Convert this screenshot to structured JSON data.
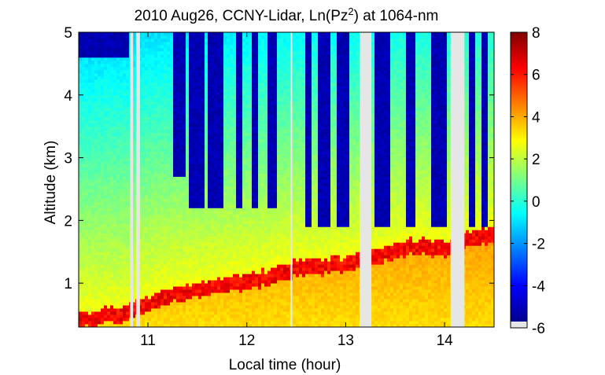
{
  "chart_data": {
    "type": "heatmap",
    "title_main": "2010 Aug26, CCNY-Lidar, Ln(Pz",
    "title_sup": "2",
    "title_end": ") at 1064-nm",
    "xlabel": "Local time (hour)",
    "ylabel": "Altitude (km)",
    "xlim": [
      10.3,
      14.5
    ],
    "ylim": [
      0.3,
      5.0
    ],
    "xticks": [
      11,
      12,
      13,
      14
    ],
    "xtick_labels": [
      "11",
      "12",
      "13",
      "14"
    ],
    "yticks": [
      1,
      2,
      3,
      4,
      5
    ],
    "ytick_labels": [
      "1",
      "2",
      "3",
      "4",
      "5"
    ],
    "colorbar": {
      "range": [
        -6,
        8
      ],
      "ticks": [
        -6,
        -4,
        -2,
        0,
        2,
        4,
        6,
        8
      ],
      "tick_labels": [
        "-6",
        "-4",
        "-2",
        "0",
        "2",
        "4",
        "6",
        "8"
      ],
      "colormap": "jet",
      "missing_color": "#e6e6e6"
    },
    "data_gaps_hours": [
      [
        10.82,
        10.85
      ],
      [
        10.88,
        10.92
      ],
      [
        12.44,
        12.46
      ],
      [
        13.14,
        13.26
      ],
      [
        14.06,
        14.2
      ]
    ],
    "boundary_layer_top_km": {
      "time": [
        10.3,
        10.8,
        11.2,
        11.5,
        11.8,
        12.2,
        12.5,
        13.0,
        13.3,
        13.7,
        14.0,
        14.2,
        14.5
      ],
      "alt": [
        0.45,
        0.6,
        0.85,
        0.95,
        1.05,
        1.15,
        1.3,
        1.35,
        1.5,
        1.65,
        1.6,
        1.75,
        1.85
      ]
    },
    "clear_air_above_km_range": [
      2.5,
      5.0
    ]
  }
}
